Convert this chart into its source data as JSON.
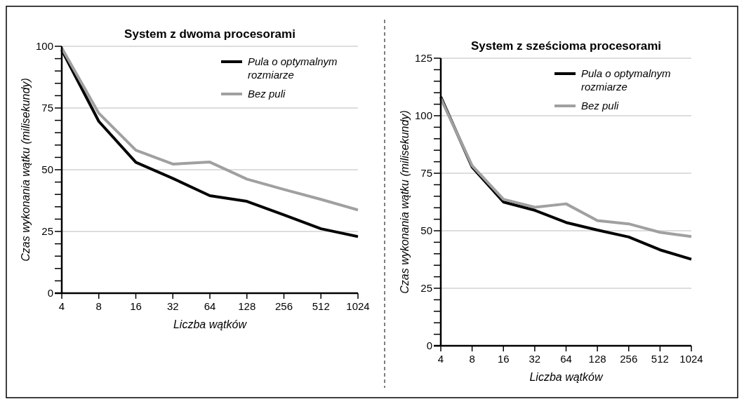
{
  "chart_data": [
    {
      "type": "line",
      "title": "System z dwoma procesorami",
      "xlabel": "Liczba wątków",
      "ylabel": "Czas wykonania wątku (milisekundy)",
      "categories": [
        "4",
        "8",
        "16",
        "32",
        "64",
        "128",
        "256",
        "512",
        "1024"
      ],
      "series": [
        {
          "name": "Pula o optymalnym rozmiarze",
          "color": "#000000",
          "values": [
            98.5,
            69.6,
            53,
            46.5,
            39.5,
            37.2,
            31.7,
            26.1,
            22.9
          ]
        },
        {
          "name": "Bez puli",
          "color": "#a0a0a0",
          "values": [
            99.3,
            72.9,
            57.9,
            52.3,
            53.1,
            46.2,
            42,
            38,
            33.7
          ]
        }
      ],
      "ylim": [
        0,
        100
      ],
      "yticks": [
        0,
        {
          "value": 5,
          "label": null
        },
        {
          "value": 10,
          "label": null
        },
        {
          "value": 15,
          "label": null
        },
        {
          "value": 20,
          "label": null
        },
        25,
        {
          "value": 30,
          "label": null
        },
        {
          "value": 35,
          "label": null
        },
        {
          "value": 40,
          "label": null
        },
        {
          "value": 45,
          "label": null
        },
        50,
        {
          "value": 55,
          "label": null
        },
        {
          "value": 60,
          "label": null
        },
        {
          "value": 65,
          "label": null
        },
        {
          "value": 70,
          "label": null
        },
        75,
        {
          "value": 80,
          "label": null
        },
        {
          "value": 85,
          "label": null
        },
        {
          "value": 90,
          "label": null
        },
        {
          "value": 95,
          "label": null
        },
        100
      ],
      "grid": "y",
      "legend": "top right"
    },
    {
      "type": "line",
      "title": "System z sześcioma procesorami",
      "xlabel": "Liczba wątków",
      "ylabel": "Czas wykonania wątku (milisekundy)",
      "categories": [
        "4",
        "8",
        "16",
        "32",
        "64",
        "128",
        "256",
        "512",
        "1024"
      ],
      "series": [
        {
          "name": "Pula o optymalnym rozmiarze",
          "color": "#000000",
          "values": [
            108.2,
            77.7,
            62.5,
            58.9,
            53.6,
            50.3,
            47.3,
            41.7,
            37.6
          ]
        },
        {
          "name": "Bez puli",
          "color": "#a0a0a0",
          "values": [
            107.5,
            78.3,
            63.7,
            60.2,
            61.7,
            54.4,
            53,
            49.3,
            47.5
          ]
        }
      ],
      "ylim": [
        0,
        125
      ],
      "yticks": [
        0,
        {
          "value": 5,
          "label": null
        },
        {
          "value": 10,
          "label": null
        },
        {
          "value": 15,
          "label": null
        },
        {
          "value": 20,
          "label": null
        },
        25,
        {
          "value": 30,
          "label": null
        },
        {
          "value": 35,
          "label": null
        },
        {
          "value": 40,
          "label": null
        },
        {
          "value": 45,
          "label": null
        },
        50,
        {
          "value": 55,
          "label": null
        },
        {
          "value": 60,
          "label": null
        },
        {
          "value": 65,
          "label": null
        },
        {
          "value": 70,
          "label": null
        },
        75,
        {
          "value": 80,
          "label": null
        },
        {
          "value": 85,
          "label": null
        },
        {
          "value": 90,
          "label": null
        },
        {
          "value": 95,
          "label": null
        },
        100,
        {
          "value": 105,
          "label": null
        },
        {
          "value": 110,
          "label": null
        },
        {
          "value": 115,
          "label": null
        },
        {
          "value": 120,
          "label": null
        },
        125
      ],
      "grid": "y",
      "legend": "top right"
    }
  ]
}
